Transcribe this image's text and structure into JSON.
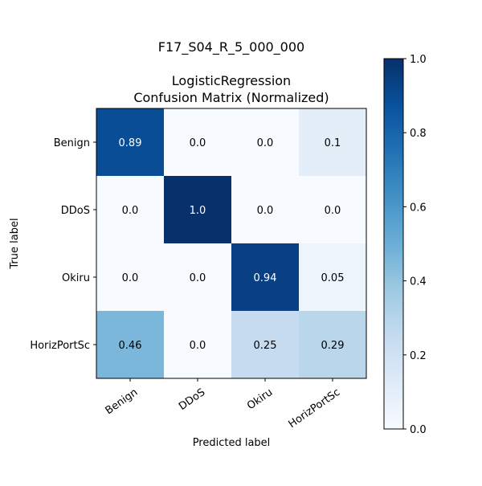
{
  "chart_data": {
    "type": "heatmap",
    "suptitle": "F17_S04_R_5_000_000",
    "title_line1": "LogisticRegression",
    "title_line2": "Confusion Matrix (Normalized)",
    "xlabel": "Predicted label",
    "ylabel": "True label",
    "x_categories": [
      "Benign",
      "DDoS",
      "Okiru",
      "HorizPortSc"
    ],
    "y_categories": [
      "Benign",
      "DDoS",
      "Okiru",
      "HorizPortSc"
    ],
    "values": [
      [
        0.89,
        0.0,
        0.0,
        0.1
      ],
      [
        0.0,
        1.0,
        0.0,
        0.0
      ],
      [
        0.0,
        0.0,
        0.94,
        0.05
      ],
      [
        0.46,
        0.0,
        0.25,
        0.29
      ]
    ],
    "value_labels": [
      [
        "0.89",
        "0.0",
        "0.0",
        "0.1"
      ],
      [
        "0.0",
        "1.0",
        "0.0",
        "0.0"
      ],
      [
        "0.0",
        "0.0",
        "0.94",
        "0.05"
      ],
      [
        "0.46",
        "0.0",
        "0.25",
        "0.29"
      ]
    ],
    "colormap": "Blues",
    "colorbar": {
      "range": [
        0.0,
        1.0
      ],
      "ticks": [
        0.0,
        0.2,
        0.4,
        0.6,
        0.8,
        1.0
      ],
      "tick_labels": [
        "0.0",
        "0.2",
        "0.4",
        "0.6",
        "0.8",
        "1.0"
      ]
    },
    "grid": false
  }
}
